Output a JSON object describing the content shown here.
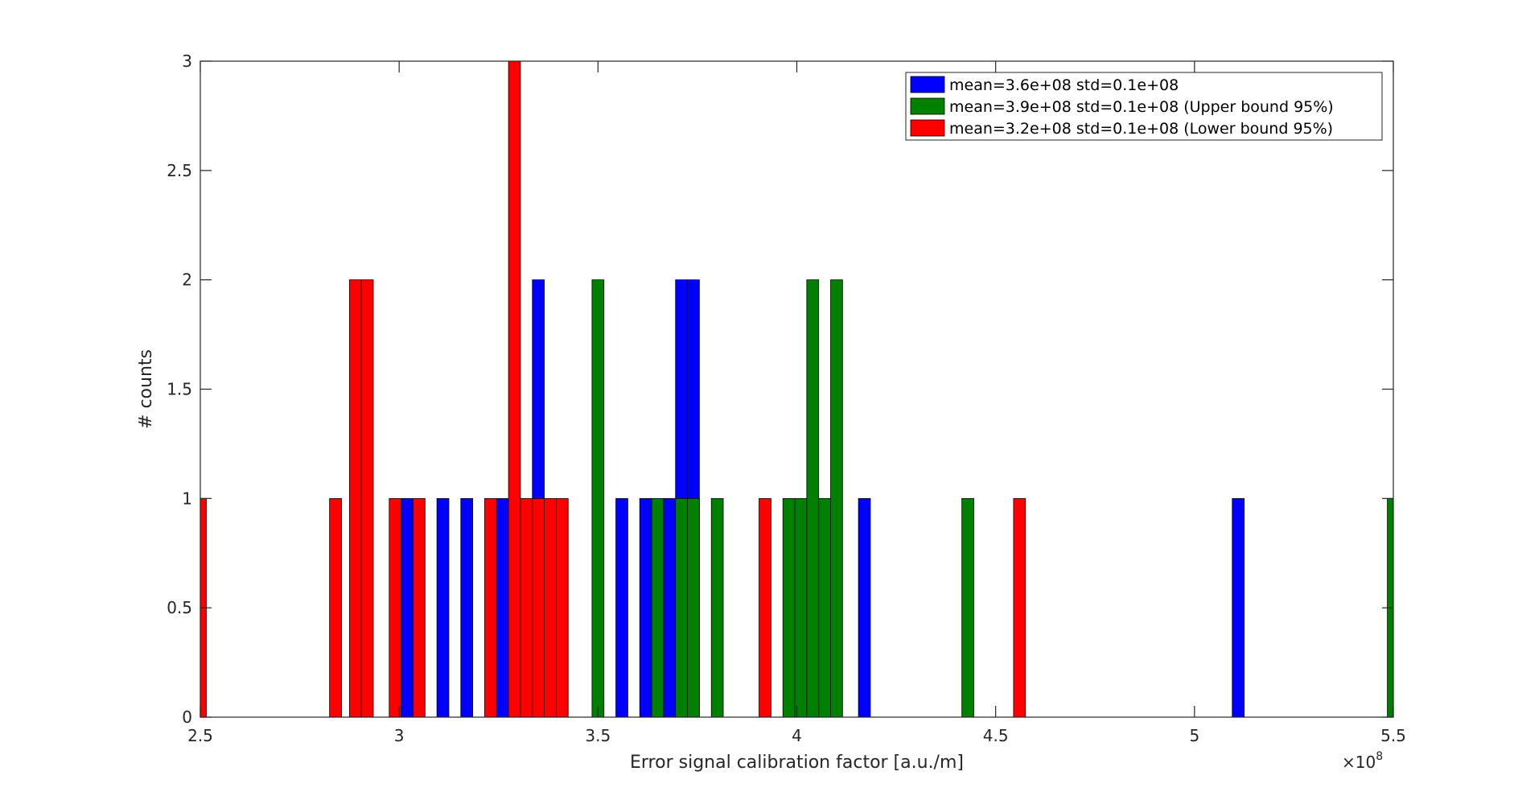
{
  "chart_data": {
    "type": "bar",
    "title": "",
    "xlabel": "Error signal calibration factor [a.u./m]",
    "ylabel": "# counts",
    "xlim": [
      2.5,
      5.5
    ],
    "ylim": [
      0,
      3
    ],
    "x_exponent_label": {
      "base": "×10",
      "exponent": "8"
    },
    "xticks": [
      2.5,
      3,
      3.5,
      4,
      4.5,
      5,
      5.5
    ],
    "xtick_labels": [
      "2.5",
      "3",
      "3.5",
      "4",
      "4.5",
      "5",
      "5.5"
    ],
    "yticks": [
      0,
      0.5,
      1,
      1.5,
      2,
      2.5,
      3
    ],
    "ytick_labels": [
      "0",
      "0.5",
      "1",
      "1.5",
      "2",
      "2.5",
      "3"
    ],
    "bin_width": 0.03,
    "grid": false,
    "legend_position": "top-right",
    "series": [
      {
        "name": "mean=3.6e+08 std=0.1e+08",
        "color": "#0000ff",
        "bins": [
          {
            "x": 3.02,
            "count": 1
          },
          {
            "x": 3.11,
            "count": 1
          },
          {
            "x": 3.17,
            "count": 1
          },
          {
            "x": 3.26,
            "count": 1
          },
          {
            "x": 3.35,
            "count": 2
          },
          {
            "x": 3.56,
            "count": 1
          },
          {
            "x": 3.62,
            "count": 1
          },
          {
            "x": 3.68,
            "count": 1
          },
          {
            "x": 3.71,
            "count": 2
          },
          {
            "x": 3.74,
            "count": 2
          },
          {
            "x": 4.17,
            "count": 1
          },
          {
            "x": 5.11,
            "count": 1
          }
        ]
      },
      {
        "name": "mean=3.9e+08 std=0.1e+08 (Upper bound 95%)",
        "color": "#008000",
        "bins": [
          {
            "x": 3.5,
            "count": 2
          },
          {
            "x": 3.65,
            "count": 1
          },
          {
            "x": 3.71,
            "count": 1
          },
          {
            "x": 3.74,
            "count": 1
          },
          {
            "x": 3.8,
            "count": 1
          },
          {
            "x": 3.98,
            "count": 1
          },
          {
            "x": 4.01,
            "count": 1
          },
          {
            "x": 4.04,
            "count": 2
          },
          {
            "x": 4.07,
            "count": 1
          },
          {
            "x": 4.1,
            "count": 2
          },
          {
            "x": 4.43,
            "count": 1
          },
          {
            "x": 5.5,
            "count": 1
          }
        ]
      },
      {
        "name": "mean=3.2e+08 std=0.1e+08 (Lower bound 95%)",
        "color": "#ff0000",
        "bins": [
          {
            "x": 2.5,
            "count": 1
          },
          {
            "x": 2.84,
            "count": 1
          },
          {
            "x": 2.89,
            "count": 2
          },
          {
            "x": 2.92,
            "count": 2
          },
          {
            "x": 2.99,
            "count": 1
          },
          {
            "x": 3.05,
            "count": 1
          },
          {
            "x": 3.23,
            "count": 1
          },
          {
            "x": 3.29,
            "count": 3
          },
          {
            "x": 3.32,
            "count": 1
          },
          {
            "x": 3.35,
            "count": 1
          },
          {
            "x": 3.38,
            "count": 1
          },
          {
            "x": 3.41,
            "count": 1
          },
          {
            "x": 3.92,
            "count": 1
          },
          {
            "x": 4.56,
            "count": 1
          }
        ]
      }
    ]
  }
}
